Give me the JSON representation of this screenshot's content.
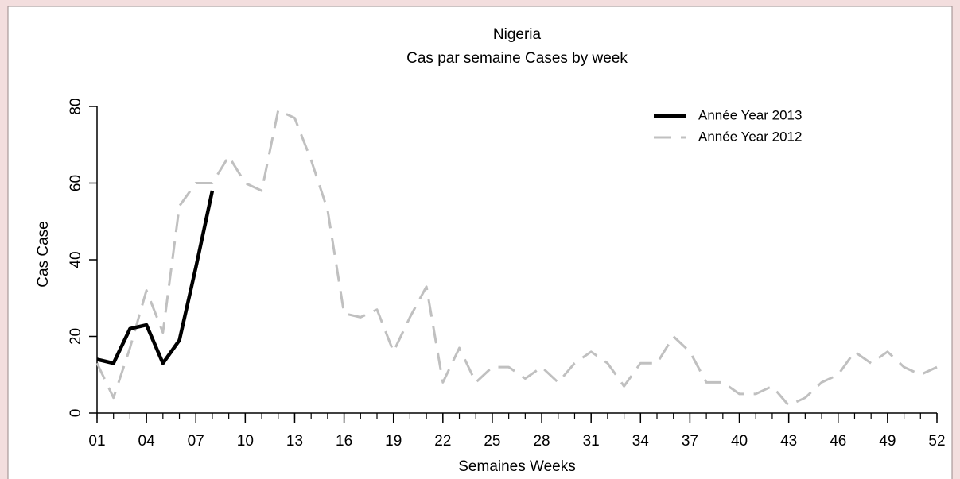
{
  "chart_data": {
    "type": "line",
    "title": "Nigeria",
    "subtitle": "Cas par semaine Cases by week",
    "x_label": "Semaines Weeks",
    "y_label": "Cas Case",
    "x": [
      1,
      2,
      3,
      4,
      5,
      6,
      7,
      8,
      9,
      10,
      11,
      12,
      13,
      14,
      15,
      16,
      17,
      18,
      19,
      20,
      21,
      22,
      23,
      24,
      25,
      26,
      27,
      28,
      29,
      30,
      31,
      32,
      33,
      34,
      35,
      36,
      37,
      38,
      39,
      40,
      41,
      42,
      43,
      44,
      45,
      46,
      47,
      48,
      49,
      50,
      51,
      52
    ],
    "series": [
      {
        "name": "Année Year 2013",
        "color": "#000000",
        "dash": false,
        "values": [
          14,
          13,
          22,
          23,
          13,
          19,
          38,
          58,
          null,
          null,
          null,
          null,
          null,
          null,
          null,
          null,
          null,
          null,
          null,
          null,
          null,
          null,
          null,
          null,
          null,
          null,
          null,
          null,
          null,
          null,
          null,
          null,
          null,
          null,
          null,
          null,
          null,
          null,
          null,
          null,
          null,
          null,
          null,
          null,
          null,
          null,
          null,
          null,
          null,
          null,
          null,
          null
        ]
      },
      {
        "name": "Année Year 2012",
        "color": "#c0c0c0",
        "dash": true,
        "values": [
          13,
          4,
          17,
          32,
          21,
          54,
          60,
          60,
          67,
          60,
          58,
          79,
          77,
          66,
          53,
          26,
          25,
          27,
          16,
          25,
          33,
          8,
          17,
          8,
          12,
          12,
          9,
          12,
          8,
          13,
          16,
          13,
          7,
          13,
          13,
          20,
          16,
          8,
          8,
          5,
          5,
          7,
          2,
          4,
          8,
          10,
          16,
          13,
          16,
          12,
          10,
          12
        ]
      }
    ],
    "xlim": [
      1,
      52
    ],
    "xticks": [
      {
        "value": 1,
        "label": "01"
      },
      {
        "value": 4,
        "label": "04"
      },
      {
        "value": 7,
        "label": "07"
      },
      10,
      13,
      16,
      19,
      22,
      25,
      28,
      31,
      34,
      37,
      40,
      43,
      46,
      49,
      52
    ],
    "ylim": [
      0,
      80
    ],
    "yticks": [
      0,
      20,
      40,
      60,
      80
    ],
    "legend": "top-right"
  }
}
